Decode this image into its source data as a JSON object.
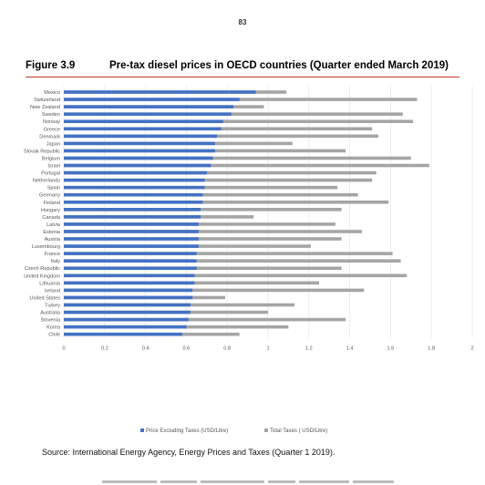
{
  "page_number": "83",
  "figure": {
    "label": "Figure 3.9",
    "title": "Pre-tax diesel prices in OECD countries (Quarter ended March 2019)"
  },
  "source": "Source: International Energy Agency, Energy Prices and Taxes (Quarter 1 2019).",
  "colors": {
    "series_excl": "#4472c4",
    "series_total": "#a5a5a5",
    "rule": "#c0392b"
  },
  "chart_data": {
    "type": "bar",
    "orientation": "horizontal",
    "categories": [
      "Mexico",
      "Switzerland",
      "New Zealand",
      "Sweden",
      "Norway",
      "Greece",
      "Denmark",
      "Japan",
      "Slovak Republic",
      "Belgium",
      "Israel",
      "Portugal",
      "Netherlands",
      "Spain",
      "Germany",
      "Finland",
      "Hungary",
      "Canada",
      "Latvia",
      "Estonia",
      "Austria",
      "Luxembourg",
      "France",
      "Italy",
      "Czech Republic",
      "United Kingdom",
      "Lithuania",
      "Ireland",
      "United States",
      "Turkey",
      "Australia",
      "Slovenia",
      "Korea",
      "Chile"
    ],
    "series": [
      {
        "name": "Price Excluding Taxes (USD/Litre)",
        "values": [
          0.94,
          0.86,
          0.83,
          0.82,
          0.78,
          0.77,
          0.75,
          0.74,
          0.74,
          0.73,
          0.72,
          0.7,
          0.69,
          0.69,
          0.68,
          0.68,
          0.67,
          0.67,
          0.66,
          0.66,
          0.66,
          0.66,
          0.65,
          0.65,
          0.65,
          0.64,
          0.64,
          0.63,
          0.63,
          0.62,
          0.62,
          0.61,
          0.6,
          0.58
        ]
      },
      {
        "name": "Total Taxes ( USD/Litre)",
        "values": [
          1.09,
          1.73,
          0.98,
          1.66,
          1.71,
          1.51,
          1.54,
          1.12,
          1.38,
          1.7,
          1.79,
          1.53,
          1.51,
          1.34,
          1.44,
          1.59,
          1.36,
          0.93,
          1.33,
          1.46,
          1.36,
          1.21,
          1.61,
          1.65,
          1.36,
          1.68,
          1.25,
          1.47,
          0.79,
          1.13,
          1.0,
          1.38,
          1.1,
          0.86
        ]
      }
    ],
    "stacked": false,
    "xlim": [
      0,
      2
    ],
    "xticks": [
      "0",
      "0.2",
      "0.4",
      "0.6",
      "0.8",
      "1",
      "1.2",
      "1.4",
      "1.6",
      "1.8",
      "2"
    ],
    "grid": true,
    "legend_position": "bottom",
    "title": "",
    "xlabel": "",
    "ylabel": ""
  }
}
